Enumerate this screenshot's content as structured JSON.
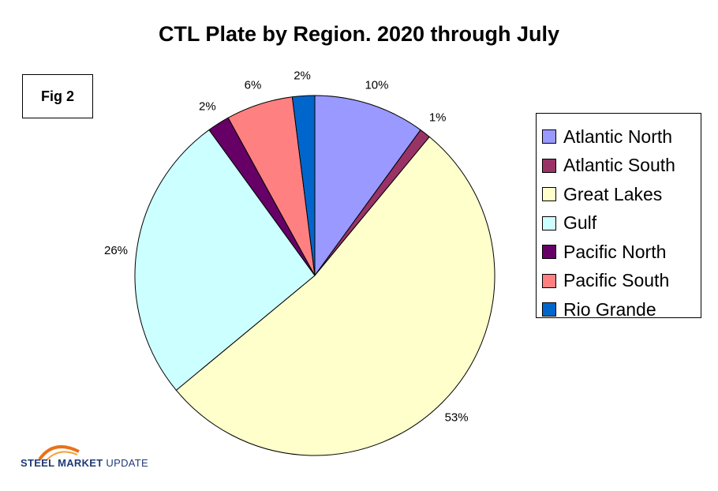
{
  "fig_label": "Fig 2",
  "logo": {
    "word1": "STEEL",
    "word2": "MARKET",
    "word3": "UPDATE"
  },
  "chart_data": {
    "type": "pie",
    "title": "CTL Plate by Region. 2020 through July",
    "legend_position": "right",
    "slices": [
      {
        "name": "Atlantic North",
        "value": 10,
        "label": "10%",
        "color": "#9999FF"
      },
      {
        "name": "Atlantic South",
        "value": 1,
        "label": "1%",
        "color": "#993366"
      },
      {
        "name": "Great Lakes",
        "value": 53,
        "label": "53%",
        "color": "#FFFFCC"
      },
      {
        "name": "Gulf",
        "value": 26,
        "label": "26%",
        "color": "#CCFFFF"
      },
      {
        "name": "Pacific North",
        "value": 2,
        "label": "2%",
        "color": "#660066"
      },
      {
        "name": "Pacific South",
        "value": 6,
        "label": "6%",
        "color": "#FF8080"
      },
      {
        "name": "Rio Grande",
        "value": 2,
        "label": "2%",
        "color": "#0066CC"
      }
    ]
  }
}
